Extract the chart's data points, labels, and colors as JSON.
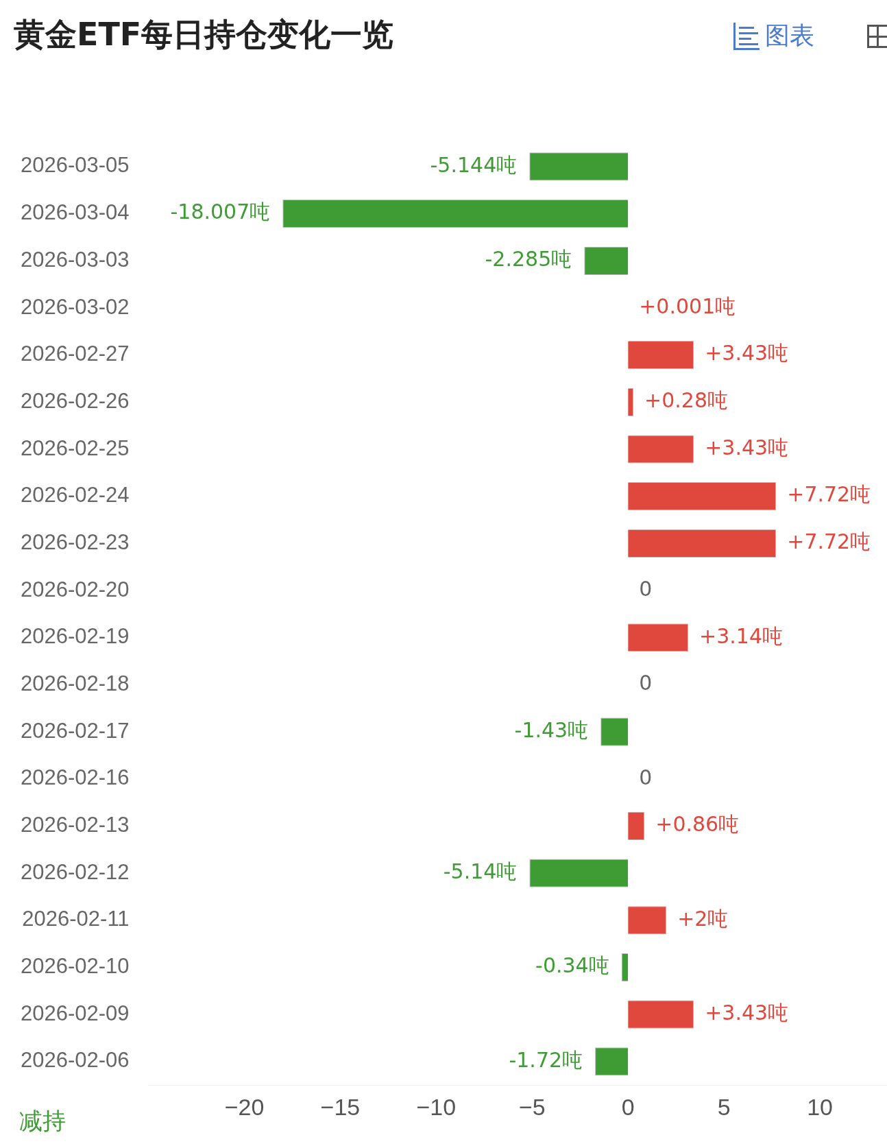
{
  "chart_data": {
    "type": "bar",
    "orientation": "horizontal",
    "title": "黄金ETF每日持仓变化一览",
    "categories": [
      "2026-03-05",
      "2026-03-04",
      "2026-03-03",
      "2026-03-02",
      "2026-02-27",
      "2026-02-26",
      "2026-02-25",
      "2026-02-24",
      "2026-02-23",
      "2026-02-20",
      "2026-02-19",
      "2026-02-18",
      "2026-02-17",
      "2026-02-16",
      "2026-02-13",
      "2026-02-12",
      "2026-02-11",
      "2026-02-10",
      "2026-02-09",
      "2026-02-06"
    ],
    "values": [
      -5.144,
      -18.007,
      -2.285,
      0.001,
      3.43,
      0.28,
      3.43,
      7.72,
      7.72,
      0,
      3.14,
      0,
      -1.43,
      0,
      0.86,
      -5.14,
      2,
      -0.34,
      3.43,
      -1.72
    ],
    "value_labels": [
      "-5.144吨",
      "-18.007吨",
      "-2.285吨",
      "+0.001吨",
      "+3.43吨",
      "+0.28吨",
      "+3.43吨",
      "+7.72吨",
      "+7.72吨",
      "0",
      "+3.14吨",
      "0",
      "-1.43吨",
      "0",
      "+0.86吨",
      "-5.14吨",
      "+2吨",
      "-0.34吨",
      "+3.43吨",
      "-1.72吨"
    ],
    "colors": [
      "#3f9c35",
      "#3f9c35",
      "#3f9c35",
      "#e0483e",
      "#e0483e",
      "#e0483e",
      "#e0483e",
      "#e0483e",
      "#e0483e",
      "#e0483e",
      "#e0483e",
      "#e0483e",
      "#3f9c35",
      "#e0483e",
      "#e0483e",
      "#3f9c35",
      "#e0483e",
      "#3f9c35",
      "#e0483e",
      "#3f9c35"
    ],
    "xlim": [
      -25,
      13.5
    ],
    "xticks": [
      -20,
      -15,
      -10,
      -5,
      0,
      5,
      10
    ],
    "annotations": [
      "减持",
      "图表"
    ],
    "legend": false,
    "grid": false
  }
}
